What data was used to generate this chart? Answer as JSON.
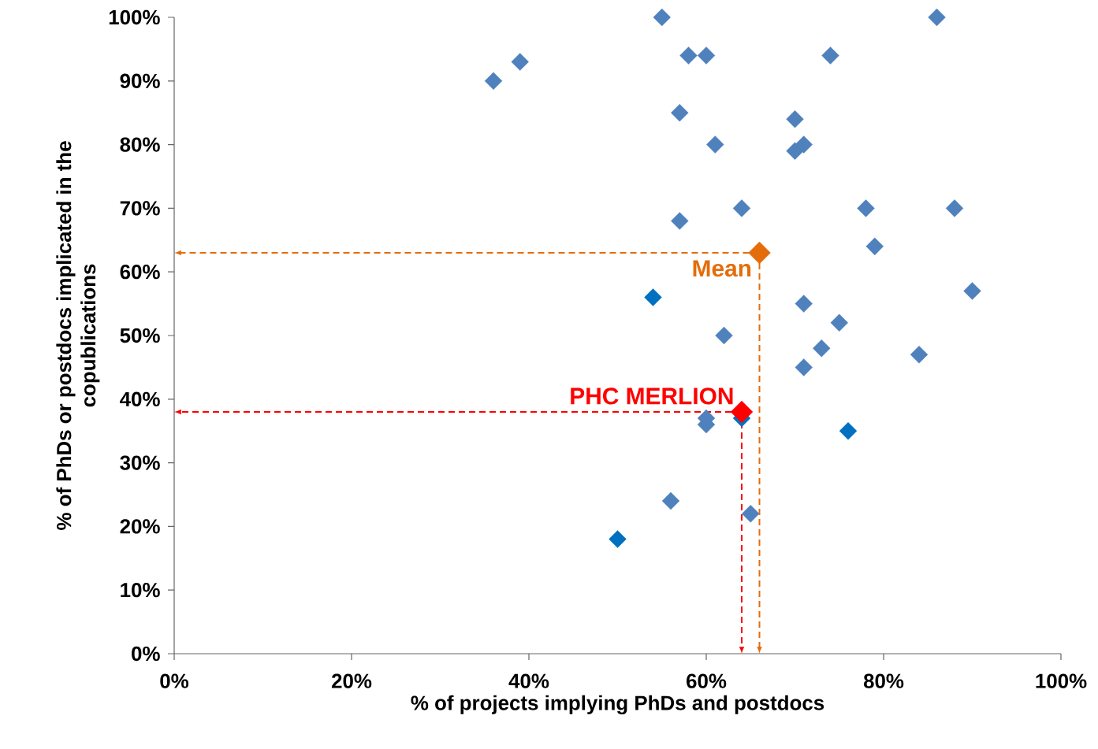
{
  "chart_data": {
    "type": "scatter",
    "xlabel": "% of projects implying PhDs and postdocs",
    "ylabel": "% of PhDs or postdocs implicated in the copublications",
    "xlim": [
      0,
      100
    ],
    "ylim": [
      0,
      100
    ],
    "xticks": [
      {
        "value": 0,
        "label": "0%"
      },
      {
        "value": 20,
        "label": "20%"
      },
      {
        "value": 40,
        "label": "40%"
      },
      {
        "value": 60,
        "label": "60%"
      },
      {
        "value": 80,
        "label": "80%"
      },
      {
        "value": 100,
        "label": "100%"
      }
    ],
    "yticks": [
      {
        "value": 0,
        "label": "0%"
      },
      {
        "value": 10,
        "label": "10%"
      },
      {
        "value": 20,
        "label": "20%"
      },
      {
        "value": 30,
        "label": "30%"
      },
      {
        "value": 40,
        "label": "40%"
      },
      {
        "value": 50,
        "label": "50%"
      },
      {
        "value": 60,
        "label": "60%"
      },
      {
        "value": 70,
        "label": "70%"
      },
      {
        "value": 80,
        "label": "80%"
      },
      {
        "value": 90,
        "label": "90%"
      },
      {
        "value": 100,
        "label": "100%"
      }
    ],
    "marker": "diamond",
    "series": [
      {
        "color": "#4f81bd",
        "x": [
          55,
          86,
          36,
          39,
          58,
          60,
          74,
          57,
          70,
          61,
          70,
          71,
          64,
          57,
          78,
          88,
          79,
          90,
          71,
          75,
          62,
          73,
          84,
          71,
          60,
          60,
          56,
          65
        ],
        "values": [
          100,
          100,
          90,
          93,
          94,
          94,
          94,
          85,
          84,
          80,
          79,
          80,
          70,
          68,
          70,
          70,
          64,
          57,
          55,
          52,
          50,
          48,
          47,
          45,
          37,
          36,
          24,
          22
        ]
      },
      {
        "color": "#0070c0",
        "x": [
          54,
          50,
          76,
          64
        ],
        "values": [
          56,
          18,
          35,
          37
        ]
      },
      {
        "name": "Mean",
        "color": "#e46c0a",
        "x": [
          66
        ],
        "values": [
          63
        ]
      },
      {
        "name": "PHC MERLION",
        "color": "#ff0000",
        "x": [
          64
        ],
        "values": [
          38
        ]
      }
    ]
  }
}
